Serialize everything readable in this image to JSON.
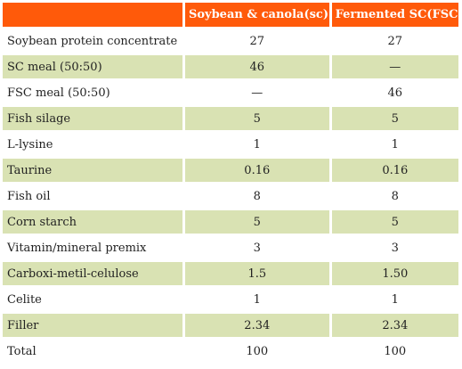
{
  "table": {
    "header": {
      "col0": "",
      "col1": "Soybean & canola(sc)",
      "col2": "Fermented SC(FSC)"
    },
    "rows": [
      {
        "name": "Soybean protein concentrate",
        "sc": "27",
        "fsc": "27"
      },
      {
        "name": "SC meal (50:50)",
        "sc": "46",
        "fsc": "—"
      },
      {
        "name": "FSC meal (50:50)",
        "sc": "—",
        "fsc": "46"
      },
      {
        "name": "Fish silage",
        "sc": "5",
        "fsc": "5"
      },
      {
        "name": "L-lysine",
        "sc": "1",
        "fsc": "1"
      },
      {
        "name": "Taurine",
        "sc": "0.16",
        "fsc": "0.16"
      },
      {
        "name": "Fish oil",
        "sc": "8",
        "fsc": "8"
      },
      {
        "name": "Corn starch",
        "sc": "5",
        "fsc": "5"
      },
      {
        "name": "Vitamin/mineral premix",
        "sc": "3",
        "fsc": "3"
      },
      {
        "name": "Carboxi-metil-celulose",
        "sc": "1.5",
        "fsc": "1.50"
      },
      {
        "name": "Celite",
        "sc": "1",
        "fsc": "1"
      },
      {
        "name": "Filler",
        "sc": "2.34",
        "fsc": "2.34"
      },
      {
        "name": "Total",
        "sc": "100",
        "fsc": "100"
      }
    ],
    "colors": {
      "header_bg": "#ff5a0a",
      "header_text": "#ffffff",
      "row_even_bg": "#d9e2b3",
      "row_odd_bg": "#ffffff"
    }
  }
}
